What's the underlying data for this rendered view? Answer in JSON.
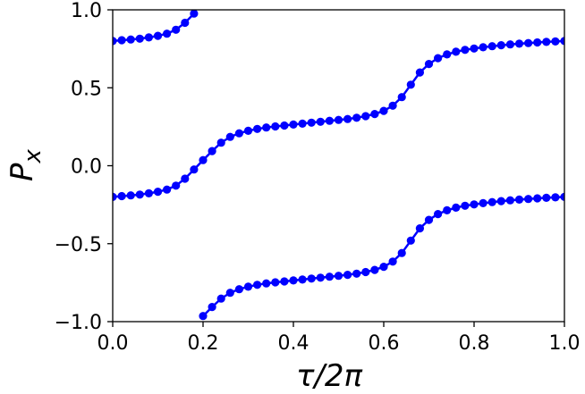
{
  "chart_data": {
    "type": "line",
    "xlabel": "τ/2π",
    "ylabel": "P",
    "ylabel_subscript": "x",
    "xlim": [
      0.0,
      1.0
    ],
    "ylim": [
      -1.0,
      1.0
    ],
    "xticks": [
      0.0,
      0.2,
      0.4,
      0.6,
      0.8,
      1.0
    ],
    "yticks": [
      -1.0,
      -0.5,
      0.0,
      0.5,
      1.0
    ],
    "xtick_labels": [
      "0.0",
      "0.2",
      "0.4",
      "0.6",
      "0.8",
      "1.0"
    ],
    "ytick_labels": [
      "−1.0",
      "−0.5",
      "0.0",
      "0.5",
      "1.0"
    ],
    "grid": false,
    "color": "#0000ff",
    "marker": "circle",
    "series": [
      {
        "x": [
          0.0,
          0.02,
          0.04,
          0.06,
          0.08,
          0.1,
          0.12,
          0.14,
          0.16,
          0.18,
          0.2,
          0.22,
          0.24,
          0.26,
          0.28,
          0.3,
          0.32,
          0.34,
          0.36,
          0.38,
          0.4,
          0.42,
          0.44,
          0.46,
          0.48,
          0.5,
          0.52,
          0.54,
          0.56,
          0.58,
          0.6,
          0.62,
          0.64,
          0.66,
          0.68,
          0.7,
          0.72,
          0.74,
          0.76,
          0.78,
          0.8,
          0.82,
          0.84,
          0.86,
          0.88,
          0.9,
          0.92,
          0.94,
          0.96,
          0.98,
          1.0
        ],
        "y": [
          -0.2,
          -0.195,
          -0.19,
          -0.185,
          -0.177,
          -0.167,
          -0.153,
          -0.128,
          -0.083,
          -0.024,
          0.036,
          0.094,
          0.148,
          0.185,
          0.208,
          0.224,
          0.236,
          0.245,
          0.252,
          0.258,
          0.264,
          0.27,
          0.276,
          0.282,
          0.288,
          0.294,
          0.3,
          0.308,
          0.318,
          0.332,
          0.352,
          0.385,
          0.44,
          0.52,
          0.598,
          0.653,
          0.69,
          0.714,
          0.731,
          0.743,
          0.752,
          0.76,
          0.767,
          0.773,
          0.778,
          0.783,
          0.787,
          0.791,
          0.794,
          0.797,
          0.8
        ]
      },
      {
        "x": [
          0.0,
          0.02,
          0.04,
          0.06,
          0.08,
          0.1,
          0.12,
          0.14,
          0.16,
          0.18
        ],
        "y": [
          0.8,
          0.805,
          0.81,
          0.815,
          0.823,
          0.833,
          0.847,
          0.872,
          0.917,
          0.976
        ]
      },
      {
        "x": [
          0.2,
          0.22,
          0.24,
          0.26,
          0.28,
          0.3,
          0.32,
          0.34,
          0.36,
          0.38,
          0.4,
          0.42,
          0.44,
          0.46,
          0.48,
          0.5,
          0.52,
          0.54,
          0.56,
          0.58,
          0.6,
          0.62,
          0.64,
          0.66,
          0.68,
          0.7,
          0.72,
          0.74,
          0.76,
          0.78,
          0.8,
          0.82,
          0.84,
          0.86,
          0.88,
          0.9,
          0.92,
          0.94,
          0.96,
          0.98,
          1.0
        ],
        "y": [
          -0.964,
          -0.906,
          -0.852,
          -0.815,
          -0.792,
          -0.776,
          -0.764,
          -0.755,
          -0.748,
          -0.742,
          -0.736,
          -0.73,
          -0.724,
          -0.718,
          -0.712,
          -0.706,
          -0.7,
          -0.692,
          -0.682,
          -0.668,
          -0.648,
          -0.615,
          -0.56,
          -0.48,
          -0.402,
          -0.347,
          -0.31,
          -0.286,
          -0.269,
          -0.257,
          -0.248,
          -0.24,
          -0.233,
          -0.227,
          -0.222,
          -0.217,
          -0.213,
          -0.209,
          -0.206,
          -0.203,
          -0.2
        ]
      }
    ]
  }
}
